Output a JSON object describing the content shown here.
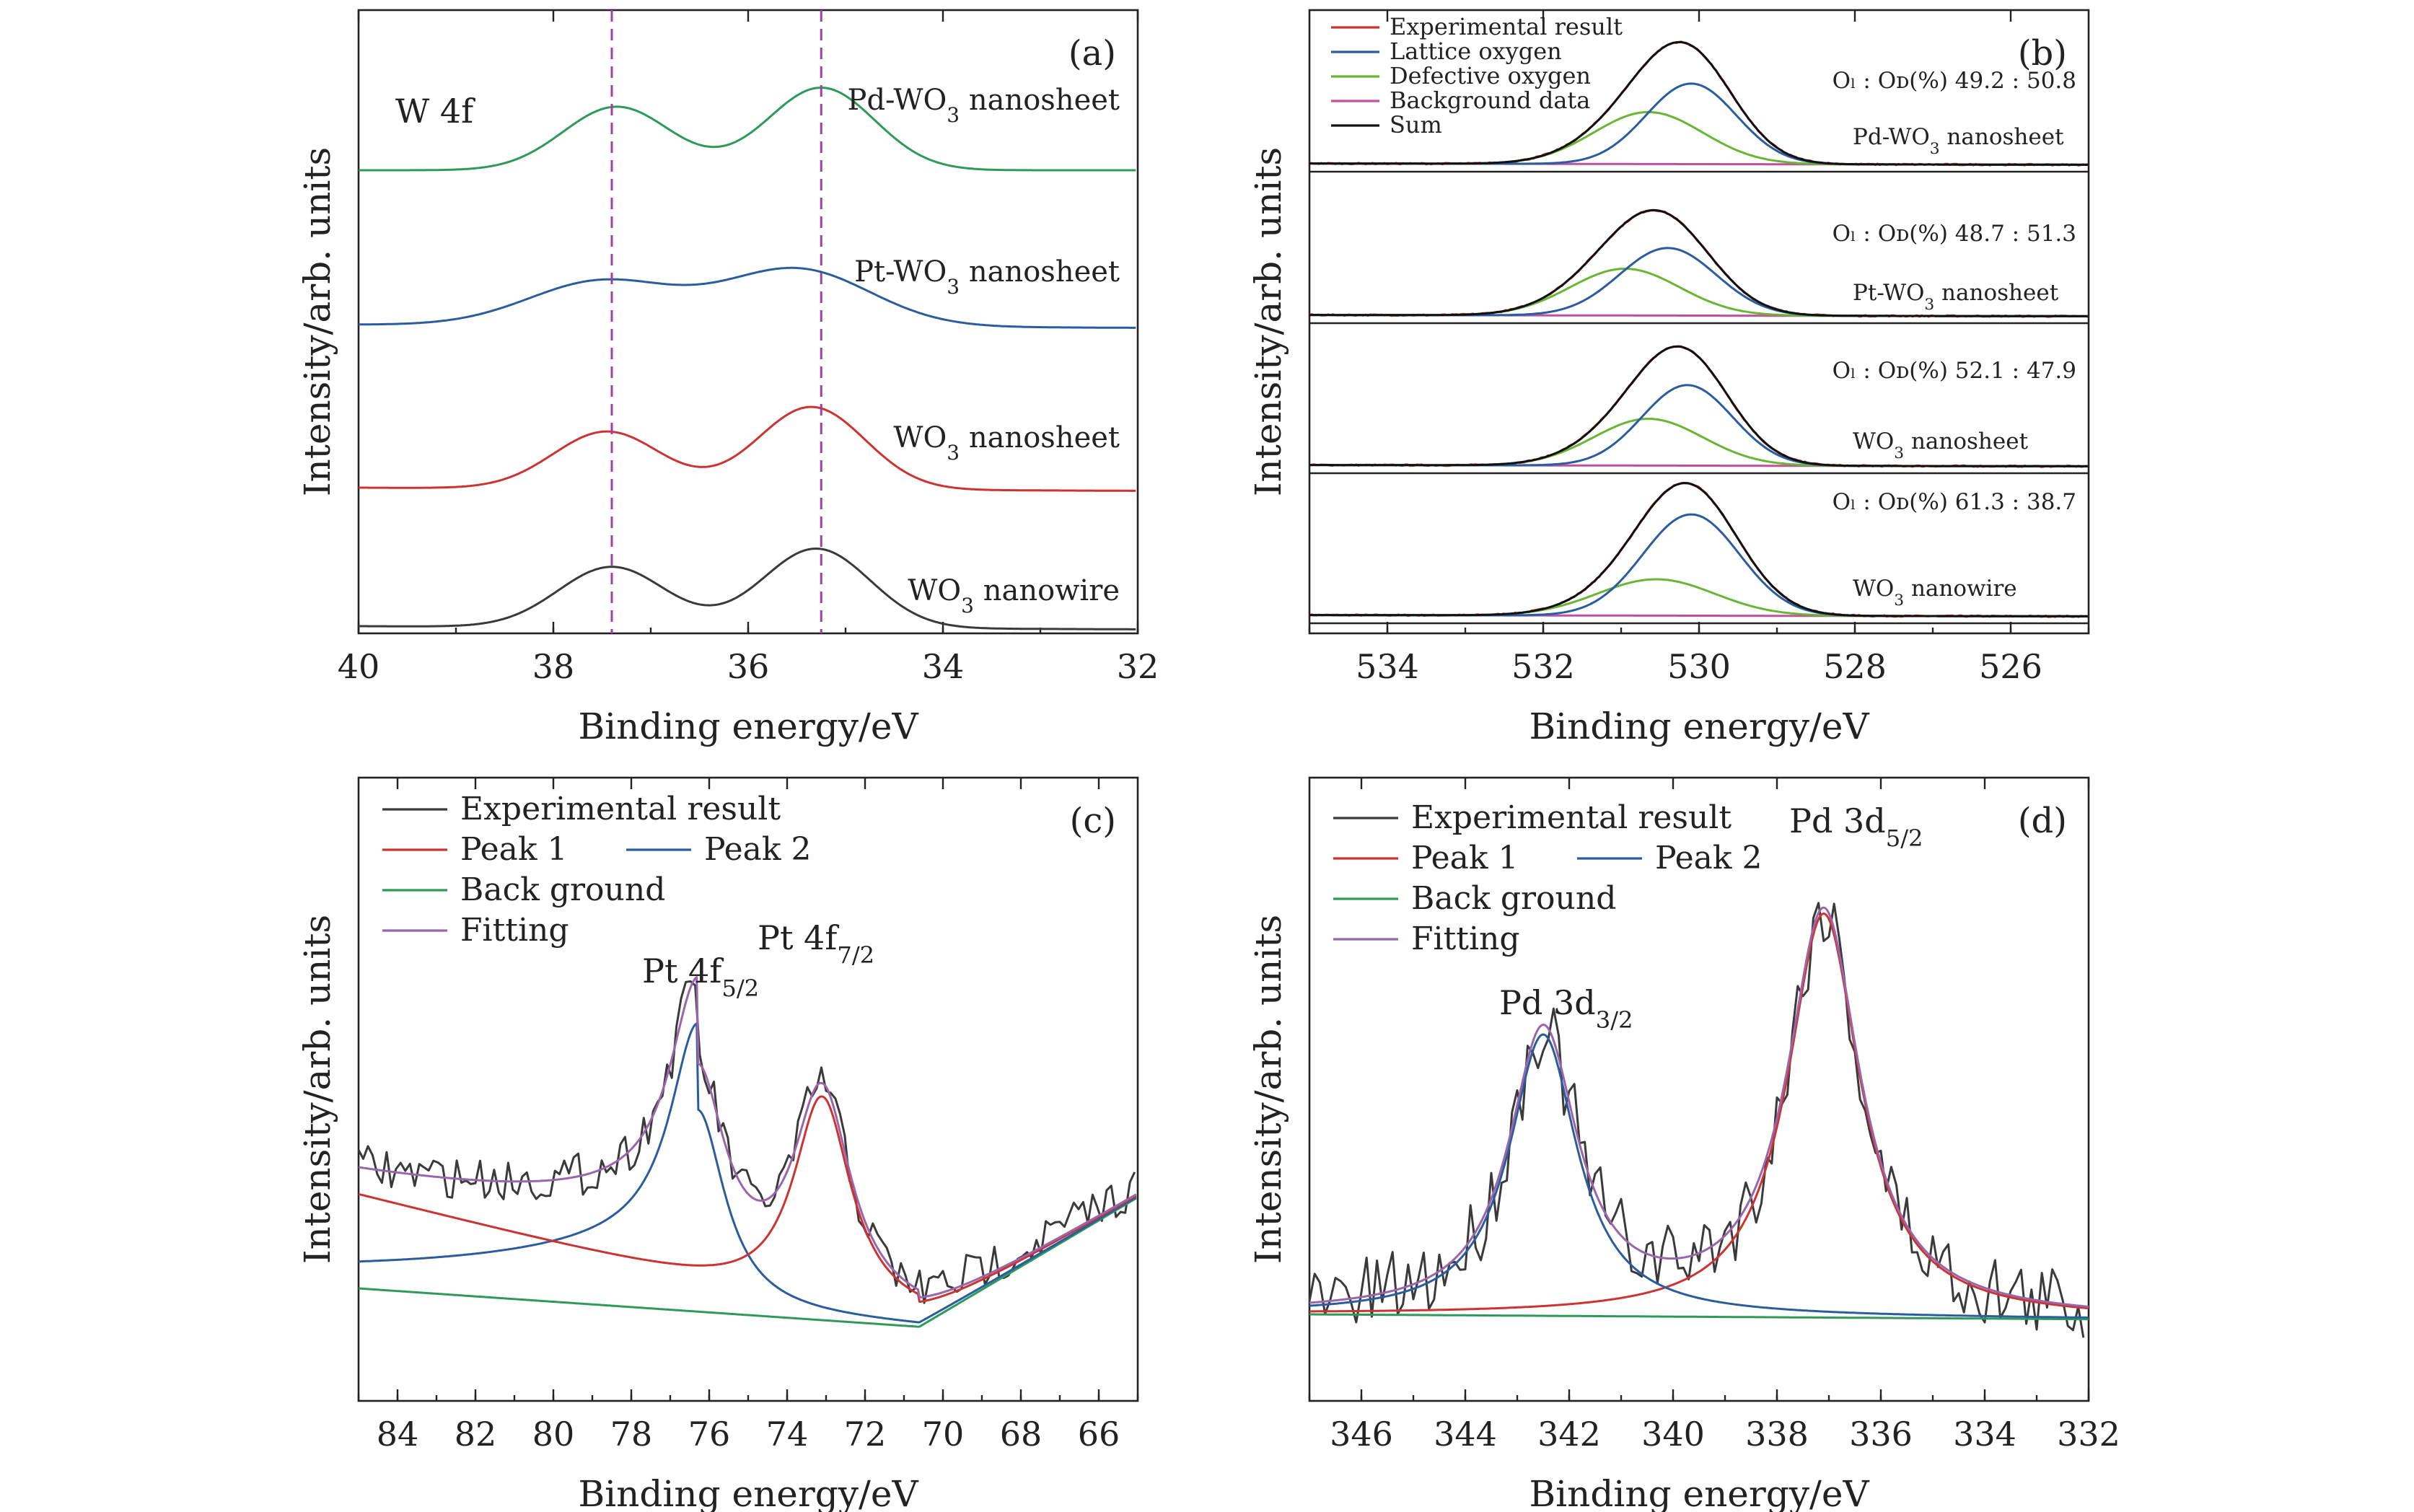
{
  "chart_data": [
    {
      "id": "a",
      "type": "line",
      "tag": "(a)",
      "xlabel": "Binding energy/eV",
      "ylabel": "Intensity/arb. units",
      "xlim": [
        40,
        32
      ],
      "x_reversed": true,
      "x_ticks": [
        40,
        38,
        36,
        34,
        32
      ],
      "annotation": "W 4f",
      "reference_lines": [
        37.4,
        35.25
      ],
      "series": [
        {
          "name": "WO3 nanowire",
          "label": "WO3 nanowire",
          "color": "#3a3a3a",
          "peaks": [
            [
              37.4,
              0.38,
              0.55
            ],
            [
              35.3,
              0.5,
              0.55
            ]
          ],
          "baseline": [
            0.0,
            -0.02
          ]
        },
        {
          "name": "WO3 nanosheet",
          "label": "WO3 nanosheet",
          "color": "#cc3333",
          "peaks": [
            [
              37.45,
              0.36,
              0.55
            ],
            [
              35.35,
              0.52,
              0.55
            ]
          ],
          "baseline": [
            1.0,
            0.98
          ]
        },
        {
          "name": "Pt-WO3 nanosheet",
          "label": "Pt-WO3 nanosheet",
          "color": "#2b5c9e",
          "peaks": [
            [
              37.5,
              0.28,
              0.75
            ],
            [
              35.5,
              0.36,
              0.75
            ]
          ],
          "baseline": [
            2.0,
            1.98
          ]
        },
        {
          "name": "Pd-WO3 nanosheet",
          "label": "Pd-WO3 nanosheet",
          "color": "#2e9a5a",
          "peaks": [
            [
              37.35,
              0.4,
              0.55
            ],
            [
              35.25,
              0.52,
              0.55
            ]
          ],
          "baseline": [
            3.0,
            3.0
          ]
        }
      ]
    },
    {
      "id": "b",
      "type": "line",
      "tag": "(b)",
      "xlabel": "Binding energy/eV",
      "ylabel": "Intensity/arb. units",
      "xlim": [
        535,
        525
      ],
      "x_reversed": true,
      "x_ticks": [
        534,
        532,
        530,
        528,
        526
      ],
      "legend": [
        {
          "label": "Experimental result",
          "color": "#cc3333"
        },
        {
          "label": "Lattice oxygen",
          "color": "#2b5c9e"
        },
        {
          "label": "Defective oxygen",
          "color": "#6ab536"
        },
        {
          "label": "Background data",
          "color": "#c050a0"
        },
        {
          "label": "Sum",
          "color": "#111111"
        }
      ],
      "ratio_prefix": "Oₗ : Oᴅ(%)",
      "samples": [
        {
          "name": "WO3 nanowire",
          "ratio": "61.3 : 38.7",
          "lattice": [
            530.1,
            0.78,
            0.62
          ],
          "defective": [
            530.55,
            0.28,
            0.75
          ]
        },
        {
          "name": "WO3 nanosheet",
          "ratio": "52.1 : 47.9",
          "lattice": [
            530.15,
            0.62,
            0.58
          ],
          "defective": [
            530.65,
            0.36,
            0.7
          ]
        },
        {
          "name": "Pt-WO3 nanosheet",
          "ratio": "48.7 : 51.3",
          "lattice": [
            530.4,
            0.52,
            0.62
          ],
          "defective": [
            530.95,
            0.36,
            0.7
          ]
        },
        {
          "name": "Pd-WO3 nanosheet",
          "ratio": "49.2 : 50.8",
          "lattice": [
            530.1,
            0.62,
            0.58
          ],
          "defective": [
            530.65,
            0.4,
            0.7
          ]
        }
      ]
    },
    {
      "id": "c",
      "type": "line",
      "tag": "(c)",
      "xlabel": "Binding energy/eV",
      "ylabel": "Intensity/arb. units",
      "xlim": [
        85,
        65
      ],
      "x_reversed": true,
      "x_ticks": [
        84,
        82,
        80,
        78,
        76,
        74,
        72,
        70,
        68,
        66
      ],
      "legend": [
        {
          "label": "Experimental result",
          "color": "#3a3a3a"
        },
        {
          "label": "Peak 1",
          "color": "#cc3333"
        },
        {
          "label": "Peak 2",
          "color": "#2b5c9e"
        },
        {
          "label": "Back ground",
          "color": "#2e9a5a"
        },
        {
          "label": "Fitting",
          "color": "#9966aa"
        }
      ],
      "peaks": [
        {
          "label": "Pt 4f",
          "sub": "5/2",
          "position": 76.3
        },
        {
          "label": "Pt 4f",
          "sub": "7/2",
          "position": 73.1
        }
      ]
    },
    {
      "id": "d",
      "type": "line",
      "tag": "(d)",
      "xlabel": "Binding energy/eV",
      "ylabel": "Intensity/arb. units",
      "xlim": [
        347,
        332
      ],
      "x_reversed": true,
      "x_ticks": [
        346,
        344,
        342,
        340,
        338,
        336,
        334,
        332
      ],
      "legend": [
        {
          "label": "Experimental result",
          "color": "#3a3a3a"
        },
        {
          "label": "Peak 1",
          "color": "#cc3333"
        },
        {
          "label": "Peak 2",
          "color": "#2b5c9e"
        },
        {
          "label": "Back ground",
          "color": "#2e9a5a"
        },
        {
          "label": "Fitting",
          "color": "#9966aa"
        }
      ],
      "peaks": [
        {
          "label": "Pd 3d",
          "sub": "3/2",
          "position": 342.5
        },
        {
          "label": "Pd 3d",
          "sub": "5/2",
          "position": 337.1
        }
      ]
    }
  ]
}
